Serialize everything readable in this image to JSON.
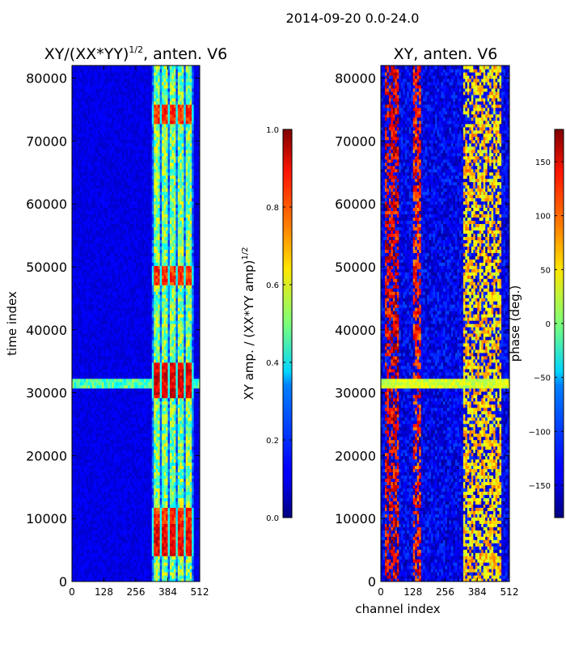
{
  "suptitle": "2014-09-20 0.0-24.0",
  "chart_data": [
    {
      "type": "heatmap",
      "title": "XY/(XX*YY)^(1/2), anten. V6",
      "title_main": "XY/(XX*YY)",
      "title_sup": "1/2",
      "title_tail": ", anten. V6",
      "xlabel": "",
      "ylabel": "time index",
      "xlim": [
        0,
        512
      ],
      "ylim": [
        0,
        82000
      ],
      "xticks": [
        0,
        128,
        256,
        384,
        512
      ],
      "yticks": [
        0,
        10000,
        20000,
        30000,
        40000,
        50000,
        60000,
        70000,
        80000
      ],
      "colorbar": {
        "label_main": "XY amp. / (XX*YY amp)",
        "label_sup": "1/2",
        "range": [
          0.0,
          1.0
        ],
        "ticks": [
          0.0,
          0.2,
          0.4,
          0.6,
          0.8,
          1.0
        ],
        "tick_labels": [
          "0.0",
          "0.2",
          "0.4",
          "0.6",
          "0.8",
          "1.0"
        ],
        "colormap": "jet"
      },
      "description_values": {
        "background_level": 0.1,
        "active_channel_range": [
          320,
          490
        ],
        "active_level": 0.5,
        "high_bands": [
          {
            "t_start": 4000,
            "t_end": 9000,
            "level": 0.95
          },
          {
            "t_start": 9000,
            "t_end": 12000,
            "level": 0.9
          },
          {
            "t_start": 29000,
            "t_end": 35000,
            "level": 0.97
          },
          {
            "t_start": 47000,
            "t_end": 50000,
            "level": 0.9
          },
          {
            "t_start": 73000,
            "t_end": 76000,
            "level": 0.9
          }
        ],
        "broadband_row": {
          "t_start": 30500,
          "t_end": 32500,
          "level": 0.45
        }
      }
    },
    {
      "type": "heatmap",
      "title": "XY, anten. V6",
      "xlabel": "channel index",
      "ylabel": "",
      "xlim": [
        0,
        512
      ],
      "ylim": [
        0,
        82000
      ],
      "xticks": [
        0,
        128,
        256,
        384,
        512
      ],
      "yticks": [
        0,
        10000,
        20000,
        30000,
        40000,
        50000,
        60000,
        70000,
        80000
      ],
      "colorbar": {
        "label": "phase (deg.)",
        "range": [
          -180,
          180
        ],
        "ticks": [
          -150,
          -100,
          -50,
          0,
          50,
          100,
          150
        ],
        "tick_labels": [
          "−150",
          "−100",
          "−50",
          "0",
          "50",
          "100",
          "150"
        ],
        "colormap": "jet"
      },
      "description_values": {
        "phase_structures": [
          {
            "channel_range": [
              20,
              70
            ],
            "level_deg": 140
          },
          {
            "channel_range": [
              130,
              160
            ],
            "level_deg": 120
          },
          {
            "channel_range": [
              330,
              480
            ],
            "level_deg": 60
          }
        ],
        "broadband_row": {
          "t_start": 30500,
          "t_end": 32500,
          "level_deg": 30
        }
      }
    }
  ]
}
